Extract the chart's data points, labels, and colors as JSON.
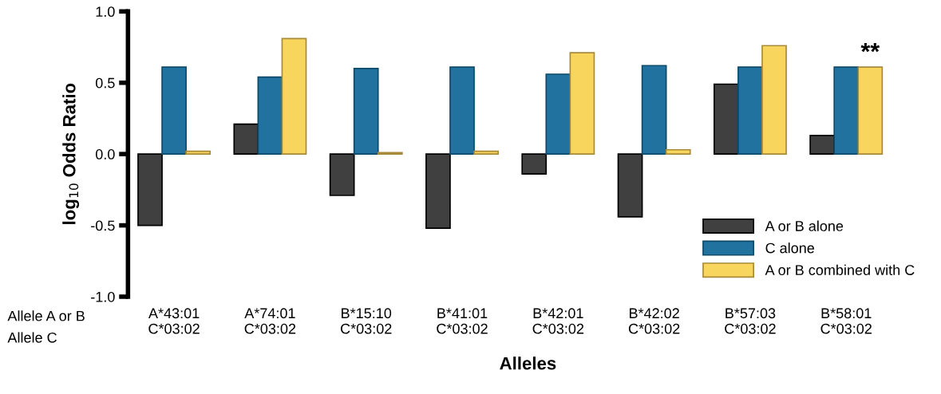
{
  "chart_data": {
    "type": "bar",
    "xlabel": "Alleles",
    "ylabel": "log$_{10}$ Odds Ratio",
    "categories": [
      "A*43:01\nC*03:02",
      "A*74:01\nC*03:02",
      "B*15:10\nC*03:02",
      "B*41:01\nC*03:02",
      "B*42:01\nC*03:02",
      "B*42:02\nC*03:02",
      "B*57:03\nC*03:02",
      "B*58:01\nC*03:02"
    ],
    "series": [
      {
        "name": "A or B alone",
        "color": "#404040",
        "values": [
          -0.5,
          0.21,
          -0.29,
          -0.52,
          -0.14,
          -0.44,
          0.49,
          0.13
        ]
      },
      {
        "name": "C alone",
        "color": "#21729f",
        "values": [
          0.61,
          0.54,
          0.6,
          0.61,
          0.56,
          0.62,
          0.61,
          0.61
        ]
      },
      {
        "name": "A or B combined with C",
        "color": "#f8d55c",
        "values": [
          0.02,
          0.81,
          0.01,
          0.02,
          0.71,
          0.03,
          0.76,
          0.61
        ]
      }
    ],
    "ylim": [
      -1.0,
      1.0
    ],
    "yticks": [
      {
        "value": -1.0,
        "label": "-1.0"
      },
      {
        "value": -0.5,
        "label": "-0.5"
      },
      {
        "value": 0.0,
        "label": "0.0"
      },
      {
        "value": 0.5,
        "label": "0.5"
      },
      {
        "value": 1.0,
        "label": "1.0"
      }
    ],
    "legend": "bottom right",
    "grid": false,
    "annotations": [
      "Allele A or B",
      "Allele C",
      {
        "text": "**",
        "x": "B*58:01\nC*03:02",
        "y": 0.61
      }
    ]
  }
}
